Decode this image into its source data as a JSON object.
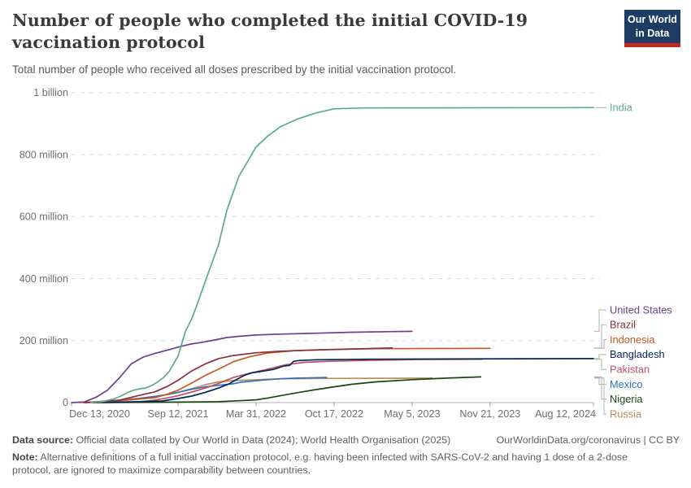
{
  "header": {
    "logo": {
      "line1": "Our World",
      "line2": "in Data"
    }
  },
  "footer": {
    "source_label": "Data source:",
    "source_text": " Official data collated by Our World in Data (2024); World Health Organisation (2025)",
    "link_text": "OurWorldinData.org/coronavirus | CC BY",
    "note_label": "Note:",
    "note_text": " Alternative definitions of a full initial vaccination protocol, e.g. having been infected with SARS-CoV-2 and having 1 dose of a 2-dose protocol, are ignored to maximize comparability between countries."
  },
  "chart_data": {
    "type": "line",
    "title": "Number of people who completed the initial COVID-19 vaccination protocol",
    "subtitle": "Total number of people who received all doses prescribed by the initial vaccination protocol.",
    "x_axis": {
      "start_date": "2020-12-13",
      "end_date": "2024-08-12",
      "ticks": [
        {
          "date": "2020-12-13",
          "label": "Dec 13, 2020",
          "align": "start"
        },
        {
          "date": "2021-09-12",
          "label": "Sep 12, 2021",
          "align": "middle"
        },
        {
          "date": "2022-03-31",
          "label": "Mar 31, 2022",
          "align": "middle"
        },
        {
          "date": "2022-10-17",
          "label": "Oct 17, 2022",
          "align": "middle"
        },
        {
          "date": "2023-05-05",
          "label": "May 5, 2023",
          "align": "middle"
        },
        {
          "date": "2023-11-21",
          "label": "Nov 21, 2023",
          "align": "middle"
        },
        {
          "date": "2024-08-12",
          "label": "Aug 12, 2024",
          "align": "end"
        }
      ]
    },
    "y_axis": {
      "unit": "people (millions)",
      "range_millions": [
        0,
        1000
      ],
      "grid": "dashed",
      "ticks": [
        {
          "value_millions": 0,
          "label": "0"
        },
        {
          "value_millions": 200,
          "label": "200 million"
        },
        {
          "value_millions": 400,
          "label": "400 million"
        },
        {
          "value_millions": 600,
          "label": "600 million"
        },
        {
          "value_millions": 800,
          "label": "800 million"
        },
        {
          "value_millions": 1000,
          "label": "1 billion"
        }
      ]
    },
    "legend_position": "right",
    "series": [
      {
        "name": "India",
        "color": "#58AC8C",
        "points": [
          [
            "2021-02-01",
            0.5
          ],
          [
            "2021-03-01",
            3
          ],
          [
            "2021-04-01",
            12
          ],
          [
            "2021-04-20",
            22
          ],
          [
            "2021-05-05",
            32
          ],
          [
            "2021-05-20",
            40
          ],
          [
            "2021-06-08",
            45
          ],
          [
            "2021-06-20",
            47
          ],
          [
            "2021-07-05",
            54
          ],
          [
            "2021-07-20",
            65
          ],
          [
            "2021-08-05",
            80
          ],
          [
            "2021-08-20",
            100
          ],
          [
            "2021-09-12",
            150
          ],
          [
            "2021-10-01",
            230
          ],
          [
            "2021-10-17",
            270
          ],
          [
            "2021-11-01",
            320
          ],
          [
            "2021-11-21",
            392
          ],
          [
            "2021-12-25",
            510
          ],
          [
            "2022-01-15",
            620
          ],
          [
            "2022-02-15",
            730
          ],
          [
            "2022-03-15",
            790
          ],
          [
            "2022-03-31",
            825
          ],
          [
            "2022-04-30",
            860
          ],
          [
            "2022-06-01",
            890
          ],
          [
            "2022-07-15",
            915
          ],
          [
            "2022-09-01",
            935
          ],
          [
            "2022-10-17",
            948
          ],
          [
            "2023-01-01",
            951
          ],
          [
            "2024-08-12",
            952
          ]
        ]
      },
      {
        "name": "United States",
        "color": "#6D3E91",
        "points": [
          [
            "2020-12-13",
            0
          ],
          [
            "2021-01-15",
            2
          ],
          [
            "2021-02-15",
            18
          ],
          [
            "2021-03-15",
            40
          ],
          [
            "2021-04-15",
            80
          ],
          [
            "2021-05-15",
            125
          ],
          [
            "2021-06-15",
            147
          ],
          [
            "2021-07-15",
            159
          ],
          [
            "2021-08-15",
            169
          ],
          [
            "2021-09-15",
            180
          ],
          [
            "2021-10-15",
            189
          ],
          [
            "2021-11-15",
            195
          ],
          [
            "2021-12-15",
            202
          ],
          [
            "2022-01-15",
            210
          ],
          [
            "2022-02-15",
            214
          ],
          [
            "2022-03-31",
            218
          ],
          [
            "2022-06-01",
            221
          ],
          [
            "2022-09-01",
            224
          ],
          [
            "2022-12-01",
            227
          ],
          [
            "2023-03-01",
            229
          ],
          [
            "2023-05-05",
            230
          ]
        ]
      },
      {
        "name": "Brazil",
        "color": "#883039",
        "points": [
          [
            "2021-01-17",
            0
          ],
          [
            "2021-03-01",
            2
          ],
          [
            "2021-04-15",
            8
          ],
          [
            "2021-06-01",
            22
          ],
          [
            "2021-07-15",
            35
          ],
          [
            "2021-08-15",
            52
          ],
          [
            "2021-09-12",
            72
          ],
          [
            "2021-10-17",
            102
          ],
          [
            "2021-11-21",
            125
          ],
          [
            "2021-12-25",
            142
          ],
          [
            "2022-02-01",
            152
          ],
          [
            "2022-03-31",
            161
          ],
          [
            "2022-06-01",
            166
          ],
          [
            "2022-09-01",
            170
          ],
          [
            "2022-12-01",
            173
          ],
          [
            "2023-03-15",
            176
          ]
        ]
      },
      {
        "name": "Indonesia",
        "color": "#C4591D",
        "points": [
          [
            "2021-01-13",
            0
          ],
          [
            "2021-04-01",
            7
          ],
          [
            "2021-06-01",
            11
          ],
          [
            "2021-07-15",
            16
          ],
          [
            "2021-08-15",
            27
          ],
          [
            "2021-09-12",
            40
          ],
          [
            "2021-10-17",
            63
          ],
          [
            "2021-11-21",
            88
          ],
          [
            "2021-12-25",
            108
          ],
          [
            "2022-02-01",
            132
          ],
          [
            "2022-03-15",
            148
          ],
          [
            "2022-04-30",
            160
          ],
          [
            "2022-07-01",
            167
          ],
          [
            "2022-10-01",
            171
          ],
          [
            "2023-02-01",
            174
          ],
          [
            "2023-11-21",
            175
          ]
        ]
      },
      {
        "name": "Bangladesh",
        "color": "#00295B",
        "points": [
          [
            "2021-02-07",
            0
          ],
          [
            "2021-06-01",
            3
          ],
          [
            "2021-08-01",
            5
          ],
          [
            "2021-09-12",
            13
          ],
          [
            "2021-10-17",
            21
          ],
          [
            "2021-11-21",
            33
          ],
          [
            "2021-12-25",
            47
          ],
          [
            "2022-01-20",
            60
          ],
          [
            "2022-02-10",
            75
          ],
          [
            "2022-03-01",
            88
          ],
          [
            "2022-03-20",
            96
          ],
          [
            "2022-04-15",
            101
          ],
          [
            "2022-05-15",
            107
          ],
          [
            "2022-06-10",
            118
          ],
          [
            "2022-06-25",
            120
          ],
          [
            "2022-07-05",
            133
          ],
          [
            "2022-07-20",
            136
          ],
          [
            "2022-09-01",
            138
          ],
          [
            "2023-01-01",
            140
          ],
          [
            "2023-08-01",
            141
          ],
          [
            "2024-08-12",
            142
          ]
        ]
      },
      {
        "name": "Pakistan",
        "color": "#C15065",
        "points": [
          [
            "2021-02-01",
            0
          ],
          [
            "2021-06-01",
            2
          ],
          [
            "2021-07-15",
            8
          ],
          [
            "2021-08-15",
            15
          ],
          [
            "2021-09-12",
            22
          ],
          [
            "2021-10-17",
            34
          ],
          [
            "2021-11-21",
            47
          ],
          [
            "2021-12-25",
            62
          ],
          [
            "2022-02-01",
            81
          ],
          [
            "2022-03-15",
            95
          ],
          [
            "2022-04-30",
            108
          ],
          [
            "2022-06-15",
            122
          ],
          [
            "2022-08-01",
            130
          ],
          [
            "2022-10-01",
            133
          ],
          [
            "2023-01-01",
            136
          ],
          [
            "2023-06-01",
            139
          ],
          [
            "2023-10-30",
            140
          ]
        ]
      },
      {
        "name": "Mexico",
        "color": "#2E72B8",
        "points": [
          [
            "2021-01-13",
            0
          ],
          [
            "2021-04-01",
            6
          ],
          [
            "2021-06-01",
            13
          ],
          [
            "2021-07-15",
            20
          ],
          [
            "2021-08-15",
            26
          ],
          [
            "2021-09-12",
            33
          ],
          [
            "2021-10-17",
            43
          ],
          [
            "2021-11-21",
            51
          ],
          [
            "2021-12-25",
            56
          ],
          [
            "2022-02-01",
            61
          ],
          [
            "2022-02-20",
            66
          ],
          [
            "2022-03-20",
            69
          ],
          [
            "2022-04-20",
            73
          ],
          [
            "2022-06-01",
            77
          ],
          [
            "2022-07-15",
            79
          ],
          [
            "2022-09-28",
            81
          ]
        ]
      },
      {
        "name": "Nigeria",
        "color": "#18470F",
        "points": [
          [
            "2021-03-02",
            0
          ],
          [
            "2021-09-12",
            1.5
          ],
          [
            "2021-12-25",
            3
          ],
          [
            "2022-02-15",
            6
          ],
          [
            "2022-03-31",
            9
          ],
          [
            "2022-05-01",
            15
          ],
          [
            "2022-06-01",
            22
          ],
          [
            "2022-07-15",
            32
          ],
          [
            "2022-09-01",
            42
          ],
          [
            "2022-10-17",
            51
          ],
          [
            "2022-12-01",
            59
          ],
          [
            "2023-02-01",
            67
          ],
          [
            "2023-05-05",
            74
          ],
          [
            "2023-08-01",
            79
          ],
          [
            "2023-10-28",
            83
          ]
        ]
      },
      {
        "name": "Russia",
        "color": "#BC8E5A",
        "points": [
          [
            "2021-01-02",
            0
          ],
          [
            "2021-04-01",
            4
          ],
          [
            "2021-06-01",
            11
          ],
          [
            "2021-07-15",
            19
          ],
          [
            "2021-08-15",
            26
          ],
          [
            "2021-09-12",
            33
          ],
          [
            "2021-10-17",
            45
          ],
          [
            "2021-11-21",
            58
          ],
          [
            "2021-12-25",
            67
          ],
          [
            "2022-02-01",
            71
          ],
          [
            "2022-03-31",
            74
          ],
          [
            "2022-06-01",
            77
          ],
          [
            "2022-09-01",
            78
          ],
          [
            "2023-06-26",
            79
          ]
        ]
      }
    ]
  },
  "colors": {
    "grid": "#dcdcdc",
    "axis_line": "#b3b3b3",
    "tick": "#999999",
    "axis_text": "#6e6e6e",
    "connector": "#b0b0b0",
    "logo_bg": "#1d3d63",
    "logo_red": "#cd2524"
  }
}
